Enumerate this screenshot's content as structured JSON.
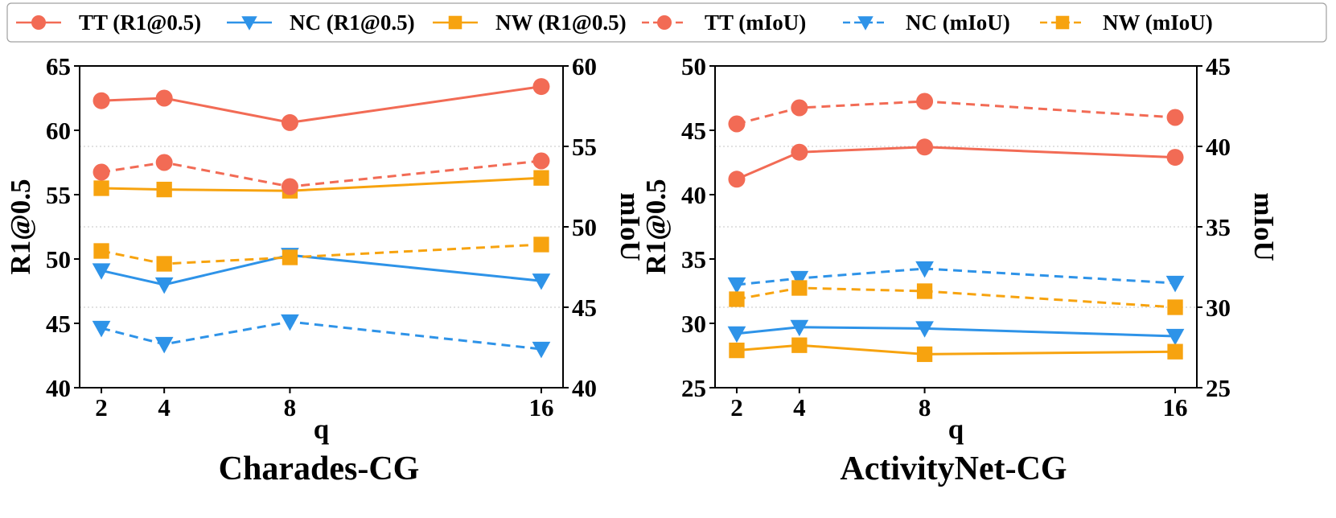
{
  "legend": [
    {
      "label": "TT (R1@0.5)",
      "color": "#F26B55",
      "marker": "circle",
      "dash": "solid"
    },
    {
      "label": "NC (R1@0.5)",
      "color": "#2E93E8",
      "marker": "triangle-down",
      "dash": "solid"
    },
    {
      "label": "NW (R1@0.5)",
      "color": "#F7A30F",
      "marker": "square",
      "dash": "solid"
    },
    {
      "label": "TT (mIoU)",
      "color": "#F26B55",
      "marker": "circle",
      "dash": "dashed"
    },
    {
      "label": "NC (mIoU)",
      "color": "#2E93E8",
      "marker": "triangle-down",
      "dash": "dashed"
    },
    {
      "label": "NW (mIoU)",
      "color": "#F7A30F",
      "marker": "square",
      "dash": "dashed"
    }
  ],
  "chart_data": [
    {
      "type": "line",
      "title": "Charades-CG",
      "xlabel": "q",
      "ylabel": "R1@0.5",
      "y2label": "mIoU",
      "x": [
        2,
        4,
        8,
        16
      ],
      "xticks": [
        "2",
        "4",
        "8",
        "16"
      ],
      "ylim": [
        40,
        65
      ],
      "yticks": [
        40,
        45,
        50,
        55,
        60,
        65
      ],
      "y2lim": [
        40,
        60
      ],
      "y2ticks": [
        40,
        45,
        50,
        55,
        60
      ],
      "grid": "horizontal dotted at right-axis ticks",
      "series": [
        {
          "name": "TT (R1@0.5)",
          "axis": "left",
          "values": [
            62.3,
            62.5,
            60.6,
            63.4
          ]
        },
        {
          "name": "NC (R1@0.5)",
          "axis": "left",
          "values": [
            49.1,
            48.0,
            50.3,
            48.3
          ]
        },
        {
          "name": "NW (R1@0.5)",
          "axis": "left",
          "values": [
            55.5,
            55.4,
            55.3,
            56.3
          ]
        },
        {
          "name": "TT (mIoU)",
          "axis": "right",
          "values": [
            53.4,
            54.0,
            52.5,
            54.1
          ]
        },
        {
          "name": "NC (mIoU)",
          "axis": "right",
          "values": [
            43.7,
            42.7,
            44.1,
            42.4
          ]
        },
        {
          "name": "NW (mIoU)",
          "axis": "right",
          "values": [
            48.5,
            47.7,
            48.1,
            48.9
          ]
        }
      ]
    },
    {
      "type": "line",
      "title": "ActivityNet-CG",
      "xlabel": "q",
      "ylabel": "R1@0.5",
      "y2label": "mIoU",
      "x": [
        2,
        4,
        8,
        16
      ],
      "xticks": [
        "2",
        "4",
        "8",
        "16"
      ],
      "ylim": [
        25,
        50
      ],
      "yticks": [
        25,
        30,
        35,
        40,
        45,
        50
      ],
      "y2lim": [
        25,
        45
      ],
      "y2ticks": [
        25,
        30,
        35,
        40,
        45
      ],
      "grid": "horizontal dotted at right-axis ticks",
      "series": [
        {
          "name": "TT (R1@0.5)",
          "axis": "left",
          "values": [
            41.2,
            43.3,
            43.7,
            42.9
          ]
        },
        {
          "name": "NC (R1@0.5)",
          "axis": "left",
          "values": [
            29.2,
            29.7,
            29.6,
            29.0
          ]
        },
        {
          "name": "NW (R1@0.5)",
          "axis": "left",
          "values": [
            27.9,
            28.3,
            27.6,
            27.8
          ]
        },
        {
          "name": "TT (mIoU)",
          "axis": "right",
          "values": [
            41.4,
            42.4,
            42.8,
            41.8
          ]
        },
        {
          "name": "NC (mIoU)",
          "axis": "right",
          "values": [
            31.4,
            31.8,
            32.4,
            31.5
          ]
        },
        {
          "name": "NW (mIoU)",
          "axis": "right",
          "values": [
            30.5,
            31.2,
            31.0,
            30.0
          ]
        }
      ]
    }
  ]
}
